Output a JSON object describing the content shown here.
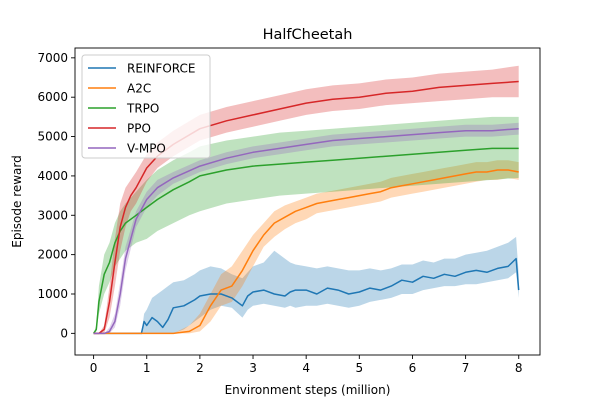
{
  "chart_data": {
    "type": "line",
    "title": "HalfCheetah",
    "xlabel": "Environment steps (million)",
    "ylabel": "Episode reward",
    "xlim": [
      -0.35,
      8.4
    ],
    "ylim": [
      -550,
      7250
    ],
    "xticks": [
      0,
      1,
      2,
      3,
      4,
      5,
      6,
      7,
      8
    ],
    "yticks": [
      0,
      1000,
      2000,
      3000,
      4000,
      5000,
      6000,
      7000
    ],
    "legend_position": "top-left",
    "series": [
      {
        "name": "REINFORCE",
        "color": "#1f77b4",
        "x": [
          0,
          0.1,
          0.2,
          0.5,
          0.9,
          0.95,
          1.0,
          1.1,
          1.2,
          1.3,
          1.4,
          1.5,
          1.7,
          1.9,
          2.0,
          2.2,
          2.4,
          2.6,
          2.8,
          2.9,
          3.0,
          3.2,
          3.4,
          3.6,
          3.7,
          3.8,
          4.0,
          4.2,
          4.4,
          4.6,
          4.8,
          5.0,
          5.2,
          5.4,
          5.6,
          5.8,
          6.0,
          6.2,
          6.4,
          6.6,
          6.8,
          7.0,
          7.2,
          7.4,
          7.6,
          7.8,
          7.95,
          8.0
        ],
        "mean": [
          0,
          0,
          0,
          0,
          0,
          300,
          200,
          400,
          300,
          150,
          350,
          650,
          700,
          850,
          950,
          1000,
          1000,
          900,
          700,
          950,
          1050,
          1100,
          1000,
          950,
          1050,
          1100,
          1100,
          1000,
          1150,
          1100,
          1000,
          1050,
          1150,
          1100,
          1200,
          1350,
          1300,
          1450,
          1400,
          1500,
          1450,
          1550,
          1600,
          1550,
          1650,
          1700,
          1900,
          1100
        ],
        "lower": [
          0,
          0,
          0,
          0,
          0,
          0,
          0,
          0,
          0,
          0,
          0,
          0,
          100,
          300,
          400,
          600,
          700,
          650,
          400,
          600,
          700,
          750,
          700,
          650,
          700,
          650,
          700,
          700,
          750,
          700,
          650,
          700,
          800,
          850,
          900,
          1000,
          1000,
          1100,
          1150,
          1200,
          1200,
          1250,
          1250,
          1300,
          1350,
          1400,
          1550,
          900
        ],
        "upper": [
          0,
          0,
          0,
          0,
          0,
          500,
          600,
          900,
          1000,
          1100,
          1200,
          1300,
          1350,
          1500,
          1600,
          1700,
          1650,
          1500,
          1400,
          1550,
          1700,
          1800,
          2100,
          1900,
          1800,
          1750,
          1700,
          1650,
          1700,
          1650,
          1600,
          1600,
          1650,
          1600,
          1650,
          1750,
          1750,
          1850,
          1800,
          1900,
          1900,
          2000,
          2050,
          2100,
          2200,
          2300,
          2450,
          1500
        ]
      },
      {
        "name": "A2C",
        "color": "#ff7f0e",
        "x": [
          0,
          0.5,
          1.0,
          1.5,
          1.8,
          2.0,
          2.2,
          2.4,
          2.6,
          2.8,
          3.0,
          3.2,
          3.4,
          3.6,
          3.8,
          4.0,
          4.2,
          4.4,
          4.6,
          4.8,
          5.0,
          5.2,
          5.4,
          5.6,
          5.8,
          6.0,
          6.2,
          6.4,
          6.6,
          6.8,
          7.0,
          7.2,
          7.4,
          7.6,
          7.8,
          8.0
        ],
        "mean": [
          0,
          0,
          0,
          0,
          50,
          200,
          700,
          1100,
          1200,
          1600,
          2100,
          2500,
          2800,
          2950,
          3100,
          3200,
          3300,
          3350,
          3400,
          3450,
          3500,
          3550,
          3600,
          3700,
          3750,
          3800,
          3850,
          3900,
          3950,
          4000,
          4050,
          4100,
          4100,
          4150,
          4150,
          4100
        ],
        "lower": [
          0,
          0,
          0,
          0,
          0,
          50,
          300,
          700,
          800,
          1200,
          1700,
          2200,
          2450,
          2650,
          2800,
          2900,
          3050,
          3100,
          3150,
          3200,
          3250,
          3300,
          3350,
          3450,
          3500,
          3550,
          3600,
          3650,
          3700,
          3750,
          3800,
          3850,
          3900,
          3900,
          3950,
          3900
        ],
        "upper": [
          0,
          0,
          0,
          0,
          200,
          500,
          1000,
          1500,
          1700,
          2100,
          2500,
          2800,
          3100,
          3250,
          3350,
          3450,
          3550,
          3600,
          3650,
          3700,
          3750,
          3800,
          3850,
          3950,
          4000,
          4050,
          4100,
          4150,
          4200,
          4250,
          4300,
          4350,
          4350,
          4400,
          4400,
          4350
        ]
      },
      {
        "name": "TRPO",
        "color": "#2ca02c",
        "x": [
          0,
          0.05,
          0.1,
          0.2,
          0.3,
          0.4,
          0.5,
          0.6,
          0.8,
          1.0,
          1.2,
          1.5,
          1.8,
          2.0,
          2.5,
          3.0,
          3.5,
          4.0,
          4.5,
          5.0,
          5.5,
          6.0,
          6.5,
          7.0,
          7.5,
          8.0
        ],
        "mean": [
          0,
          100,
          800,
          1500,
          1800,
          2300,
          2600,
          2800,
          3000,
          3200,
          3400,
          3650,
          3850,
          4000,
          4150,
          4250,
          4300,
          4350,
          4400,
          4450,
          4500,
          4550,
          4600,
          4650,
          4700,
          4700
        ],
        "lower": [
          0,
          50,
          500,
          1000,
          1300,
          1700,
          1900,
          2100,
          2300,
          2400,
          2600,
          2800,
          3000,
          3100,
          3300,
          3400,
          3500,
          3550,
          3600,
          3650,
          3700,
          3750,
          3800,
          3850,
          3900,
          3950
        ],
        "upper": [
          0,
          200,
          1200,
          2000,
          2300,
          2800,
          3100,
          3300,
          3600,
          3900,
          4150,
          4400,
          4600,
          4750,
          4900,
          5000,
          5100,
          5150,
          5200,
          5250,
          5300,
          5350,
          5400,
          5450,
          5500,
          5500
        ]
      },
      {
        "name": "PPO",
        "color": "#d62728",
        "x": [
          0,
          0.1,
          0.2,
          0.3,
          0.4,
          0.5,
          0.6,
          0.7,
          0.8,
          1.0,
          1.2,
          1.5,
          2.0,
          2.5,
          3.0,
          3.5,
          4.0,
          4.5,
          5.0,
          5.5,
          6.0,
          6.5,
          7.0,
          7.5,
          8.0
        ],
        "mean": [
          0,
          0,
          100,
          800,
          1800,
          2700,
          3200,
          3500,
          3700,
          4200,
          4500,
          4800,
          5200,
          5400,
          5550,
          5700,
          5850,
          5950,
          6000,
          6100,
          6150,
          6250,
          6300,
          6350,
          6400
        ],
        "lower": [
          0,
          0,
          0,
          400,
          1200,
          2100,
          2700,
          3100,
          3300,
          3850,
          4200,
          4500,
          4900,
          5100,
          5250,
          5400,
          5550,
          5650,
          5700,
          5800,
          5850,
          5900,
          5950,
          6000,
          6000
        ],
        "upper": [
          0,
          0,
          200,
          1200,
          2400,
          3300,
          3700,
          3900,
          4100,
          4550,
          4850,
          5150,
          5550,
          5750,
          5900,
          6050,
          6200,
          6300,
          6350,
          6450,
          6500,
          6600,
          6650,
          6700,
          6800
        ]
      },
      {
        "name": "V-MPO",
        "color": "#9467bd",
        "x": [
          0,
          0.2,
          0.3,
          0.4,
          0.5,
          0.6,
          0.8,
          1.0,
          1.2,
          1.5,
          2.0,
          2.5,
          3.0,
          3.5,
          4.0,
          4.5,
          5.0,
          5.5,
          6.0,
          6.5,
          7.0,
          7.5,
          8.0
        ],
        "mean": [
          0,
          0,
          50,
          300,
          1000,
          1900,
          2900,
          3400,
          3700,
          3950,
          4250,
          4450,
          4600,
          4700,
          4800,
          4900,
          4950,
          5000,
          5050,
          5100,
          5150,
          5150,
          5200
        ],
        "lower": [
          0,
          0,
          0,
          150,
          700,
          1600,
          2700,
          3200,
          3500,
          3800,
          4100,
          4300,
          4450,
          4550,
          4650,
          4750,
          4800,
          4850,
          4900,
          4950,
          5000,
          5000,
          5050
        ],
        "upper": [
          0,
          0,
          150,
          500,
          1300,
          2200,
          3100,
          3600,
          3900,
          4100,
          4400,
          4600,
          4750,
          4850,
          4950,
          5050,
          5100,
          5150,
          5200,
          5250,
          5300,
          5300,
          5350
        ]
      }
    ]
  }
}
